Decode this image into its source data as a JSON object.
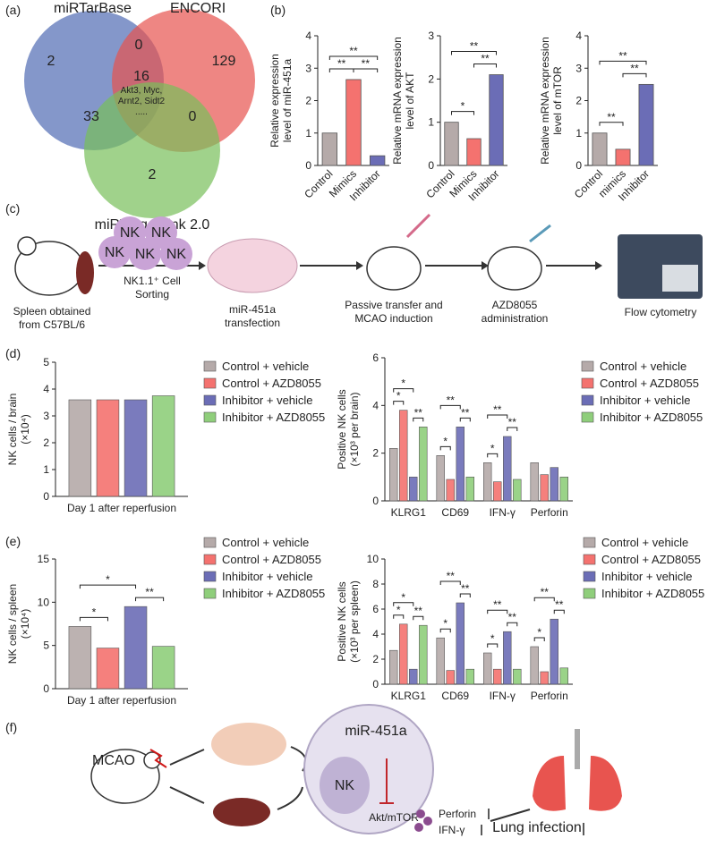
{
  "panel_labels": [
    "(a)",
    "(b)",
    "(c)",
    "(d)",
    "(e)",
    "(f)"
  ],
  "venn": {
    "sets": [
      "miRTarBase",
      "ENCORI",
      "miRTargetLink 2.0"
    ],
    "counts": {
      "miRTarBase_only": 2,
      "miRTarBase_ENCORI": 0,
      "ENCORI_only": 129,
      "all": 16,
      "miRTarBase_miRTargetLink": 33,
      "ENCORI_miRTargetLink": 0,
      "miRTargetLink_only": 2
    },
    "genes": [
      "Akt3, Myc,",
      "Arnt2, Sidt2",
      "....."
    ]
  },
  "schematic": {
    "nk_labels": [
      "NK",
      "NK",
      "NK",
      "NK",
      "NK"
    ],
    "sorting": [
      "NK1.1⁺ Cell",
      "Sorting"
    ],
    "spleen": [
      "Spleen obtained",
      "from C57BL/6"
    ],
    "transfection": [
      "miR-451a",
      "transfection"
    ],
    "transfer": [
      "Passive transfer and",
      "MCAO induction"
    ],
    "administration": [
      "AZD8055",
      "administration"
    ],
    "flow": "Flow cytometry"
  },
  "mechanism": {
    "mcao": "MCAO",
    "mirna": "miR-451a",
    "nk": "NK",
    "pathway": "Akt/mTOR",
    "perforin": "Perforin",
    "ifn": "IFN-γ",
    "lung": "Lung infection"
  },
  "chart_data": [
    {
      "type": "bar",
      "ylabel": [
        "Relative expression",
        "level of miR-451a"
      ],
      "categories": [
        "Control",
        "Mimics",
        "Inhibitor"
      ],
      "values": [
        1.0,
        2.65,
        0.3
      ],
      "colors": [
        "#b5aaa9",
        "#f4726f",
        "#6b6db6"
      ],
      "ylim": [
        0,
        4
      ],
      "yticks": [
        0,
        1,
        2,
        3,
        4
      ],
      "significance": [
        "**",
        "**",
        "**"
      ]
    },
    {
      "type": "bar",
      "ylabel": [
        "Relative mRNA expression",
        "level of AKT"
      ],
      "categories": [
        "Control",
        "Mimics",
        "Inhibitor"
      ],
      "values": [
        1.0,
        0.62,
        2.1
      ],
      "colors": [
        "#b5aaa9",
        "#f4726f",
        "#6b6db6"
      ],
      "ylim": [
        0,
        3
      ],
      "yticks": [
        0,
        1,
        2,
        3
      ],
      "significance": [
        "**",
        "*",
        "**"
      ]
    },
    {
      "type": "bar",
      "ylabel": [
        "Relative mRNA expression",
        "level of mTOR"
      ],
      "categories": [
        "Control",
        "mimics",
        "Inhibitor"
      ],
      "values": [
        1.0,
        0.5,
        2.5
      ],
      "colors": [
        "#b5aaa9",
        "#f4726f",
        "#6b6db6"
      ],
      "ylim": [
        0,
        4
      ],
      "yticks": [
        0,
        1,
        2,
        3,
        4
      ],
      "significance": [
        "**",
        "**",
        "**"
      ]
    },
    {
      "type": "grouped_bar",
      "ylabel": [
        "NK cells / brain",
        "(×10⁴)"
      ],
      "categories": [
        "Day 1 after reperfusion"
      ],
      "ylim": [
        0,
        5
      ],
      "yticks": [
        0,
        1,
        2,
        3,
        4,
        5
      ],
      "series": [
        {
          "name": "Control + vehicle",
          "color": "#b5aaa9",
          "values": [
            3.6
          ]
        },
        {
          "name": "Control + AZD8055",
          "color": "#f4726f",
          "values": [
            3.6
          ]
        },
        {
          "name": "Inhibitor + vehicle",
          "color": "#6b6db6",
          "values": [
            3.6
          ]
        },
        {
          "name": "Inhibitor + AZD8055",
          "color": "#8fce7b",
          "values": [
            3.75
          ]
        }
      ]
    },
    {
      "type": "grouped_bar",
      "ylabel": [
        "Positive NK cells",
        "(×10³ per brain)"
      ],
      "categories": [
        "KLRG1",
        "CD69",
        "IFN-γ",
        "Perforin"
      ],
      "ylim": [
        0,
        6
      ],
      "yticks": [
        0,
        2,
        4,
        6
      ],
      "series": [
        {
          "name": "Control + vehicle",
          "color": "#b5aaa9",
          "values": [
            2.2,
            1.9,
            1.6,
            1.6
          ]
        },
        {
          "name": "Control + AZD8055",
          "color": "#f4726f",
          "values": [
            3.8,
            0.9,
            0.8,
            1.1
          ]
        },
        {
          "name": "Inhibitor + vehicle",
          "color": "#6b6db6",
          "values": [
            1.0,
            3.1,
            2.7,
            1.4
          ]
        },
        {
          "name": "Inhibitor + AZD8055",
          "color": "#8fce7b",
          "values": [
            3.1,
            1.0,
            0.9,
            1.0
          ]
        }
      ],
      "significance": [
        [
          "*",
          "*",
          "**"
        ],
        [
          "**",
          "*",
          "**"
        ],
        [
          "**",
          "*",
          "**"
        ],
        []
      ]
    },
    {
      "type": "grouped_bar",
      "ylabel": [
        "NK cells / spleen",
        "(×10⁴)"
      ],
      "categories": [
        "Day 1 after reperfusion"
      ],
      "ylim": [
        0,
        15
      ],
      "yticks": [
        0,
        5,
        10,
        15
      ],
      "series": [
        {
          "name": "Control + vehicle",
          "color": "#b5aaa9",
          "values": [
            7.2
          ]
        },
        {
          "name": "Control + AZD8055",
          "color": "#f4726f",
          "values": [
            4.7
          ]
        },
        {
          "name": "Inhibitor + vehicle",
          "color": "#6b6db6",
          "values": [
            9.5
          ]
        },
        {
          "name": "Inhibitor + AZD8055",
          "color": "#8fce7b",
          "values": [
            4.9
          ]
        }
      ],
      "significance": [
        [
          "*",
          "*",
          "**"
        ]
      ]
    },
    {
      "type": "grouped_bar",
      "ylabel": [
        "Positive NK cells",
        "(×10³ per spleen)"
      ],
      "categories": [
        "KLRG1",
        "CD69",
        "IFN-γ",
        "Perforin"
      ],
      "ylim": [
        0,
        10
      ],
      "yticks": [
        0,
        2,
        4,
        6,
        8,
        10
      ],
      "series": [
        {
          "name": "Control + vehicle",
          "color": "#b5aaa9",
          "values": [
            2.7,
            3.7,
            2.5,
            3.0
          ]
        },
        {
          "name": "Control + AZD8055",
          "color": "#f4726f",
          "values": [
            4.8,
            1.1,
            1.2,
            1.0
          ]
        },
        {
          "name": "Inhibitor + vehicle",
          "color": "#6b6db6",
          "values": [
            1.2,
            6.5,
            4.2,
            5.2
          ]
        },
        {
          "name": "Inhibitor + AZD8055",
          "color": "#8fce7b",
          "values": [
            4.7,
            1.2,
            1.2,
            1.3
          ]
        }
      ],
      "significance": [
        [
          "*",
          "*",
          "**"
        ],
        [
          "**",
          "*",
          "**"
        ],
        [
          "**",
          "*",
          "**"
        ],
        [
          "**",
          "*",
          "**"
        ]
      ]
    }
  ]
}
